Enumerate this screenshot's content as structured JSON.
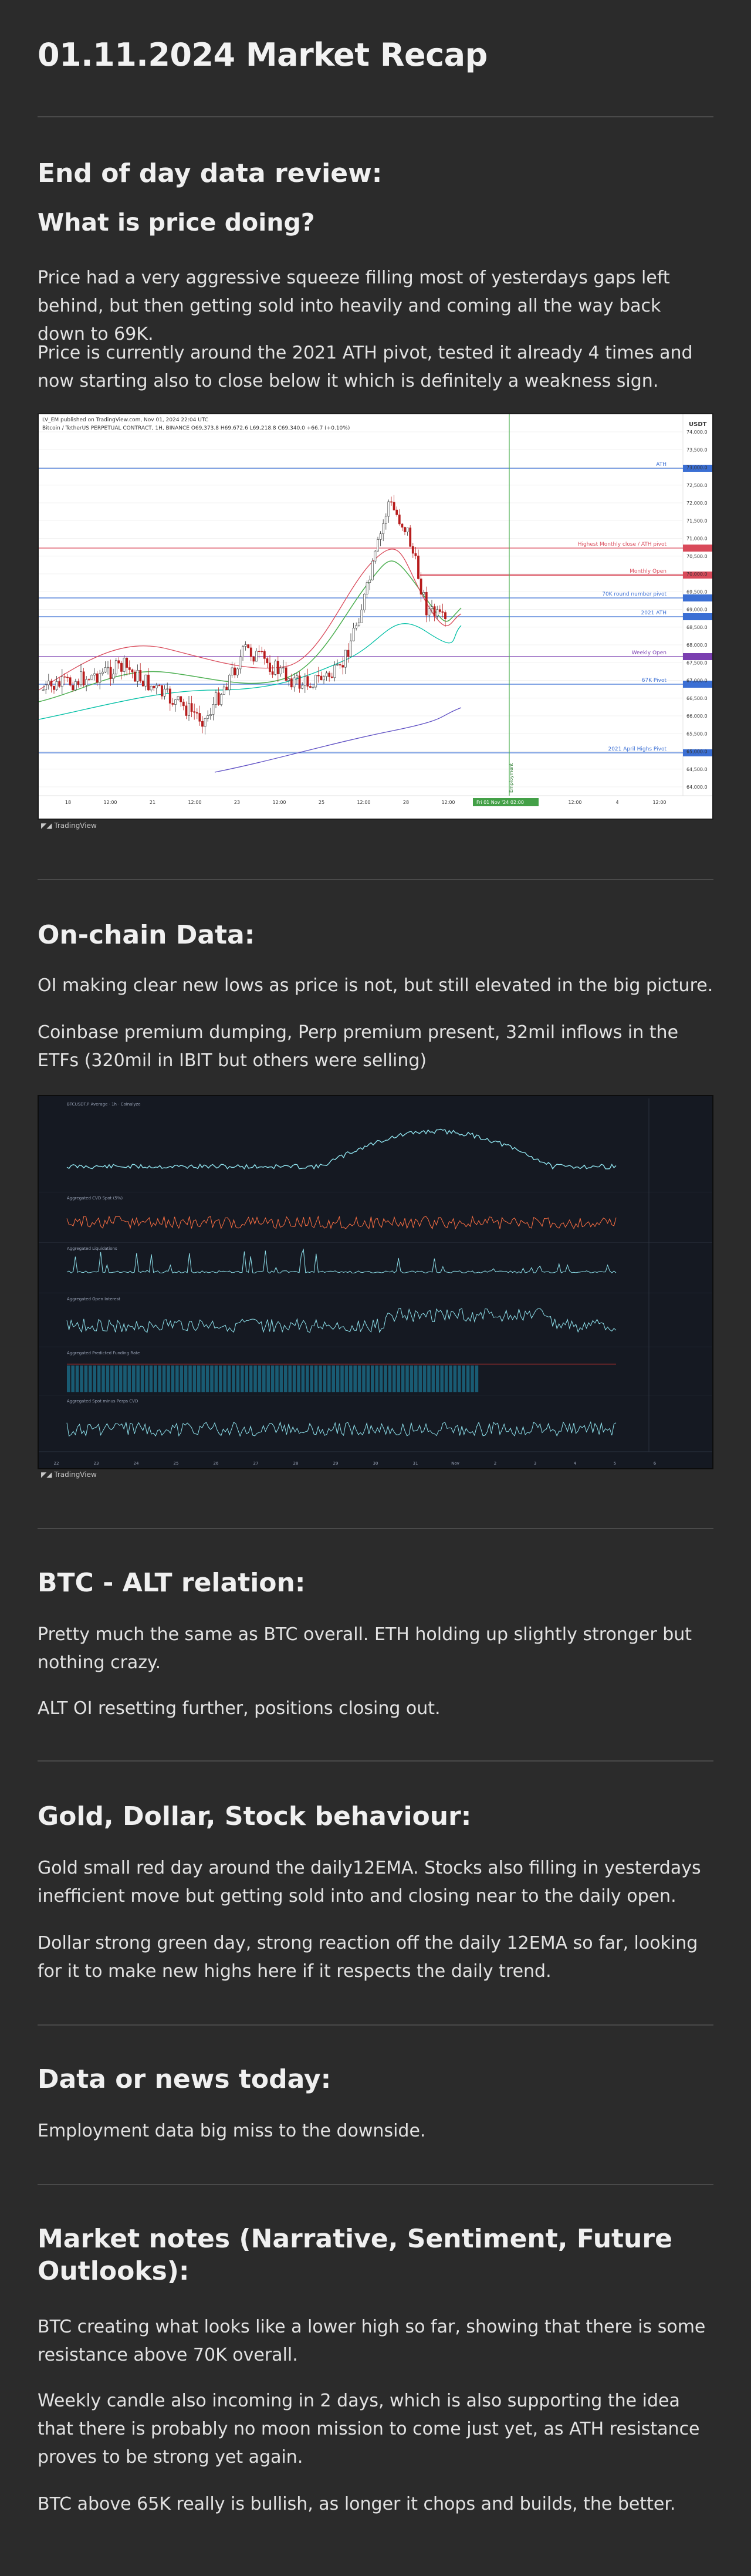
{
  "title": "01.11.2024 Market Recap",
  "sections": {
    "eod": {
      "heading": "End of day data review:",
      "subheading": "What is price doing?",
      "p1": "Price had a very aggressive squeeze filling most of yesterdays gaps left behind, but then getting sold into heavily and coming all the way back down to 69K.",
      "p2": "Price is currently around the 2021 ATH pivot, tested it already 4 times and now starting also to close below it which is definitely a weakness sign."
    },
    "onchain": {
      "heading": "On-chain Data:",
      "p1": "OI making clear new lows as price is not, but still elevated in the big picture.",
      "p2": "Coinbase premium dumping, Perp premium present, 32mil inflows in the ETFs (320mil in IBIT but others were selling)"
    },
    "btc_alt": {
      "heading": "BTC - ALT relation:",
      "p1": "Pretty much the same as BTC overall. ETH holding up slightly stronger but nothing crazy.",
      "p2": "ALT OI resetting further, positions closing out."
    },
    "gold": {
      "heading": "Gold, Dollar, Stock behaviour:",
      "p1": "Gold small red day around the daily12EMA. Stocks also filling in yesterdays inefficient move but getting sold into and closing near to the daily open.",
      "p2": "Dollar strong green day, strong reaction off the daily 12EMA so far, looking for it to make new highs here if it respects the daily trend."
    },
    "news": {
      "heading": "Data or news today:",
      "p1": "Employment data big miss to the downside."
    },
    "notes": {
      "heading": "Market notes (Narrative, Sentiment, Future Outlooks):",
      "p1": "BTC creating what looks like a lower high so far, showing that there is some resistance above 70K overall.",
      "p2": "Weekly candle also incoming in 2 days, which is also supporting the idea that there is probably no moon mission to come just yet, as ATH resistance proves to be strong yet again.",
      "p3": "BTC above 65K really is bullish, as longer it chops and builds, the better."
    }
  },
  "chart1": {
    "header": "LV_EM published on TradingView.com, Nov 01, 2024 22:04 UTC",
    "symbol_line": "Bitcoin / TetherUS PERPETUAL CONTRACT, 1H, BINANCE  O69,373.8  H69,672.6  L69,218.8  C69,340.0  +66.7 (+0.10%)",
    "currency": "USDT",
    "footer": "TradingView",
    "levels": [
      {
        "label": "ATH",
        "color": "#3b6fd4"
      },
      {
        "label": "Highest Monthly close / ATH pivot",
        "color": "#d94a5a"
      },
      {
        "label": "Monthly Open",
        "color": "#d94a5a"
      },
      {
        "label": "70K round number pivot",
        "color": "#3b6fd4"
      },
      {
        "label": "2021 ATH",
        "color": "#3b6fd4"
      },
      {
        "label": "Weekly Open",
        "color": "#7a3fb0"
      },
      {
        "label": "67K Pivot",
        "color": "#3b6fd4"
      },
      {
        "label": "2021 April Highs Pivot",
        "color": "#3b6fd4"
      }
    ],
    "y_ticks": [
      "74,000.0",
      "73,500.0",
      "73,000.0",
      "72,500.0",
      "72,000.0",
      "71,500.0",
      "71,000.0",
      "70,500.0",
      "70,000.0",
      "69,500.0",
      "69,000.0",
      "68,500.0",
      "68,000.0",
      "67,500.0",
      "67,000.0",
      "66,500.0",
      "66,000.0",
      "65,500.0",
      "65,000.0",
      "64,500.0",
      "64,000.0"
    ],
    "x_ticks": [
      "18",
      "12:00",
      "21",
      "12:00",
      "23",
      "12:00",
      "25",
      "12:00",
      "28",
      "12:00",
      "30",
      "Nov",
      "12:00",
      "4",
      "12:00"
    ],
    "date_badge": "Fri 01 Nov '24  02:00",
    "vline_label": "Employment"
  },
  "chart2": {
    "header": "BTCUSDT.P Average · 1h · Coinalyze",
    "footer": "TradingView",
    "panes": [
      "BTCUSDT Average",
      "Aggregated CVD Spot (5%)",
      "Aggregated Liquidations",
      "Aggregated Open Interest",
      "Aggregated Predicted Funding Rate",
      "Aggregated Spot minus Perps CVD"
    ],
    "x_ticks": [
      "22",
      "23",
      "24",
      "25",
      "26",
      "27",
      "28",
      "29",
      "30",
      "31",
      "Nov",
      "2",
      "3",
      "4",
      "5",
      "6"
    ]
  }
}
